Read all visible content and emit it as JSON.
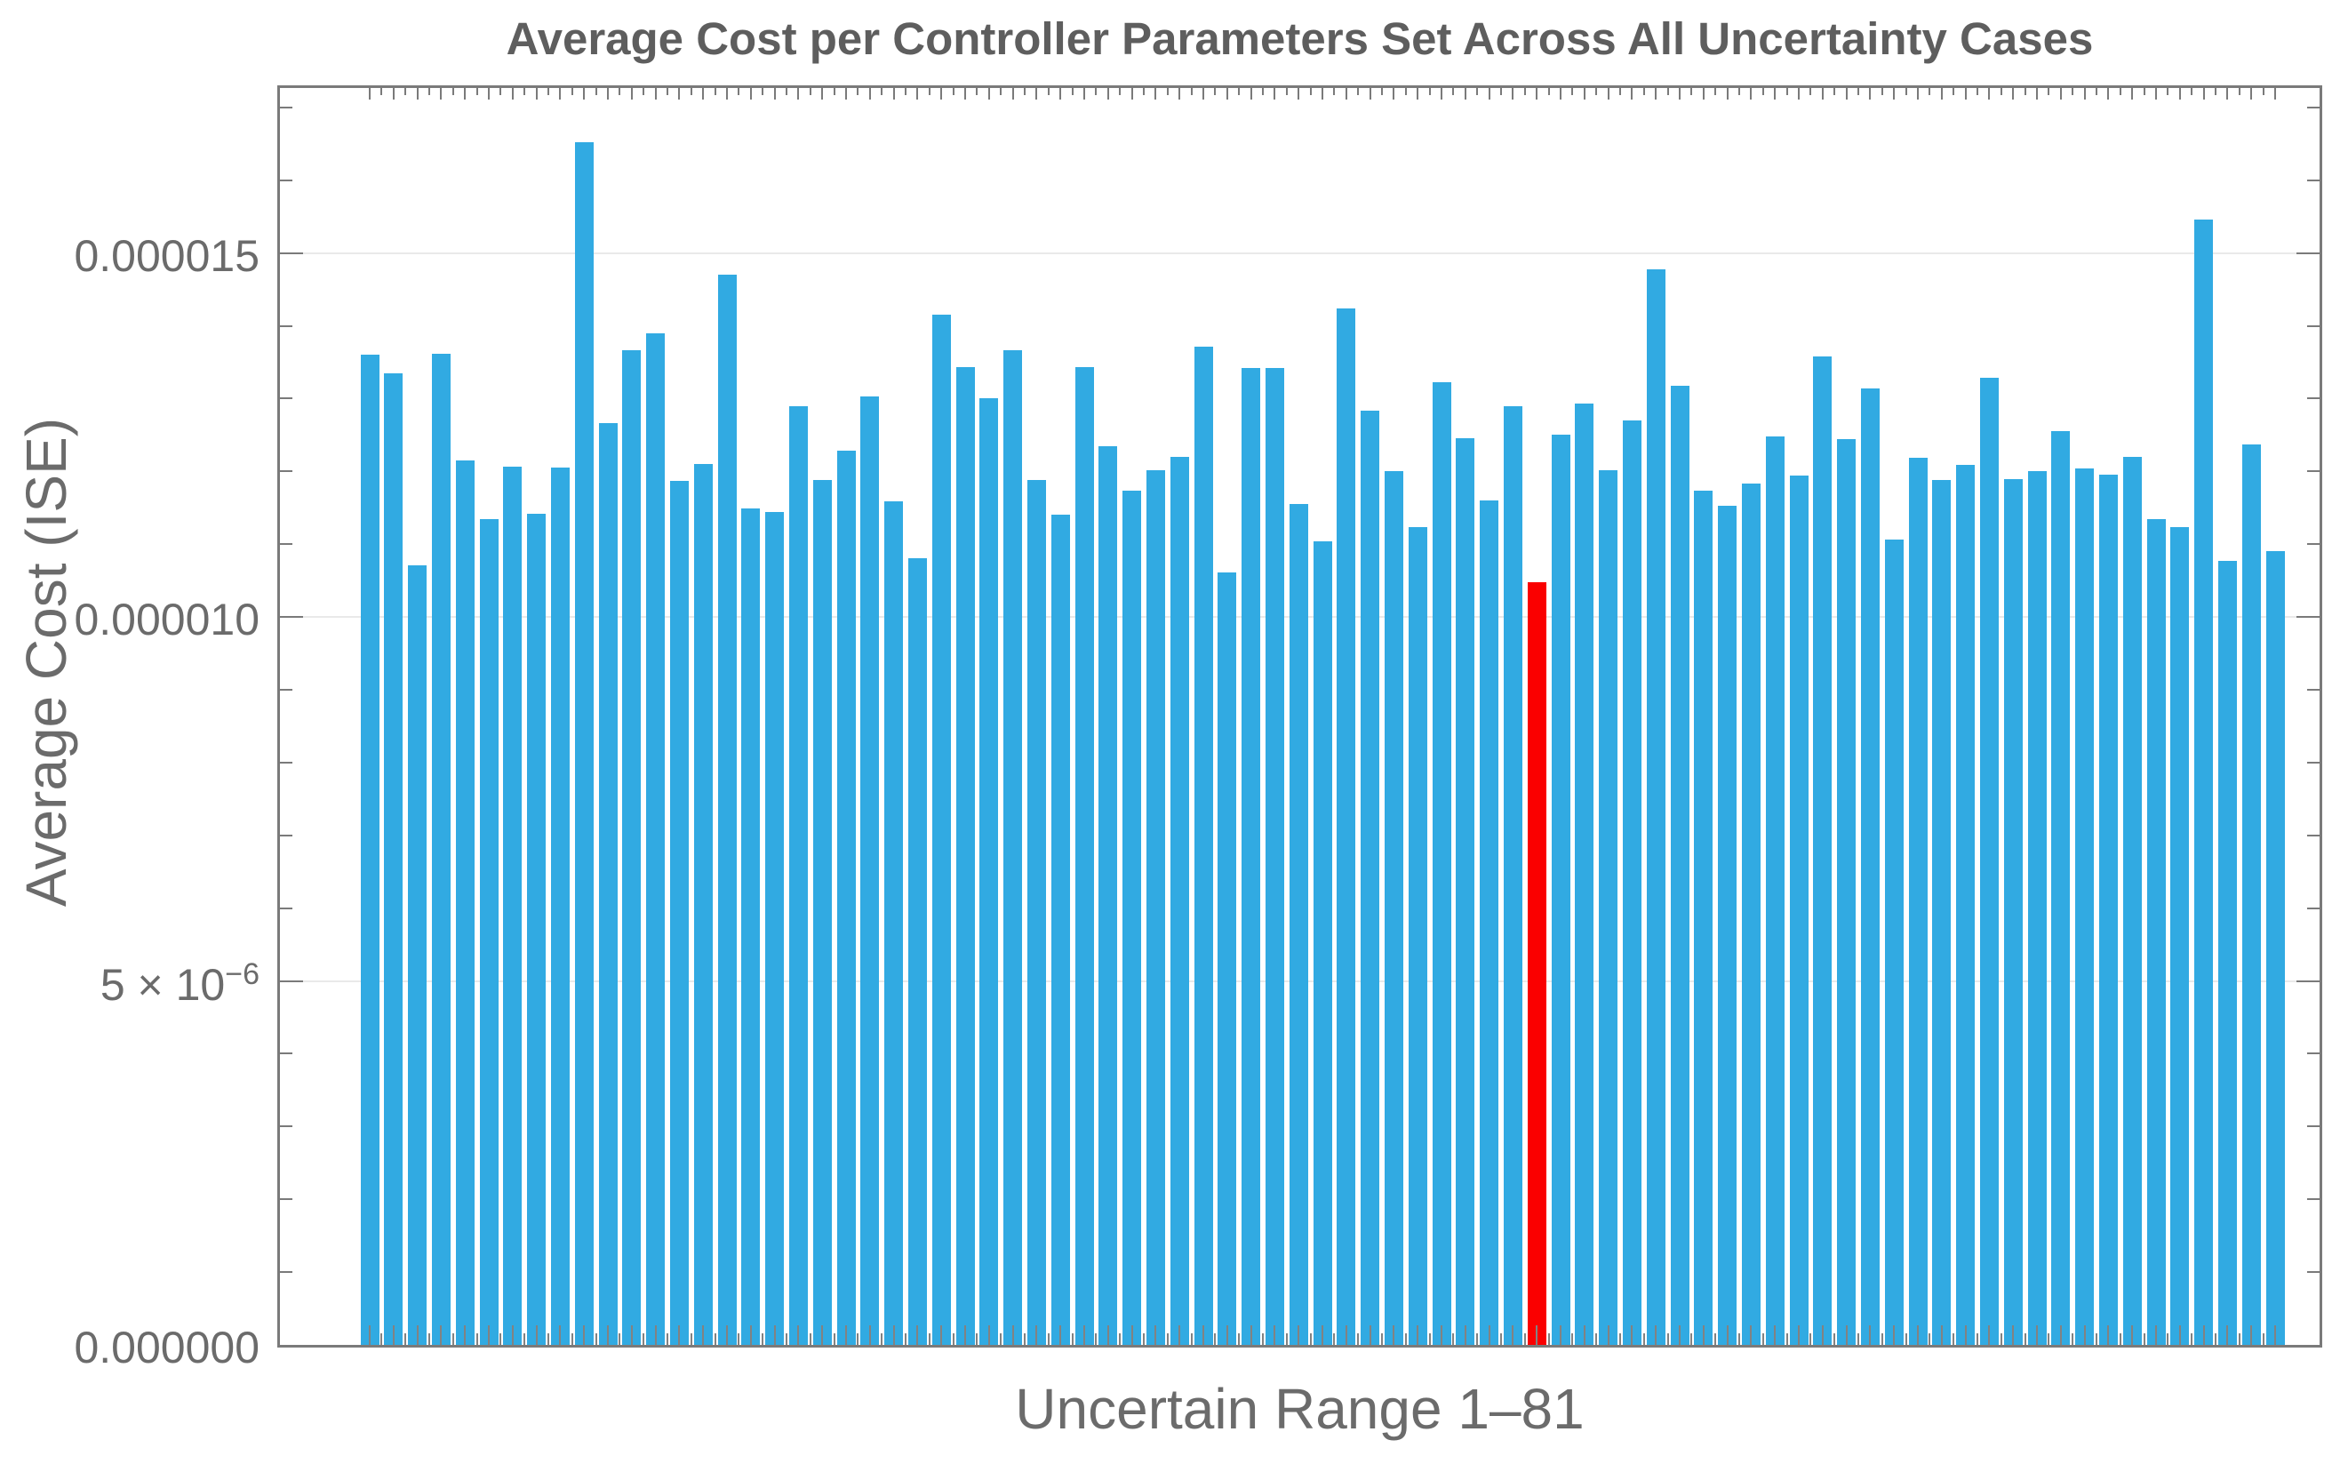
{
  "chart_data": {
    "type": "bar",
    "title": "Average Cost per Controller Parameters Set Across All Uncertainty Cases",
    "xlabel": "Uncertain Range 1–81",
    "ylabel": "Average Cost (ISE)",
    "unit_scale": "1e-6",
    "n_bars": 81,
    "categories_range": [
      1,
      81
    ],
    "values_e6": [
      13.6,
      13.35,
      10.71,
      13.61,
      12.15,
      11.34,
      12.06,
      11.42,
      12.05,
      16.52,
      12.66,
      13.66,
      13.9,
      11.87,
      12.1,
      14.7,
      11.49,
      11.44,
      12.89,
      11.88,
      12.29,
      13.03,
      11.59,
      10.81,
      14.15,
      13.43,
      13.0,
      13.66,
      11.88,
      11.4,
      13.43,
      12.34,
      11.74,
      12.01,
      12.2,
      13.71,
      10.61,
      13.42,
      13.42,
      11.55,
      11.04,
      14.24,
      12.84,
      12.0,
      11.24,
      13.23,
      12.45,
      11.6,
      12.89,
      10.48,
      12.51,
      12.93,
      12.01,
      12.7,
      14.78,
      13.18,
      11.73,
      11.53,
      11.83,
      12.48,
      11.94,
      13.58,
      12.44,
      13.14,
      11.06,
      12.19,
      11.88,
      12.09,
      13.28,
      11.9,
      12.0,
      12.55,
      12.04,
      11.95,
      12.2,
      11.35,
      11.23,
      15.46,
      10.77,
      12.37,
      10.9
    ],
    "highlight_index": 50,
    "bar_color": "#31AAE2",
    "highlight_color": "#FA0000",
    "ylim_e6": [
      0,
      17.34
    ],
    "gridlines_e6": [
      5,
      10,
      15
    ],
    "y_minor_tick_step_e6": 1,
    "x_minor_tick_step_units": 0.5,
    "grid_on": true,
    "legend": null,
    "y_ticks": [
      {
        "value_e6": 0,
        "label": "0.000000"
      },
      {
        "value_e6": 5,
        "mantissa": "5 × 10",
        "exponent": "−6"
      },
      {
        "value_e6": 10,
        "label": "0.000010"
      },
      {
        "value_e6": 15,
        "label": "0.000015"
      }
    ]
  },
  "colors": {
    "title_text": "#5e5e5e",
    "axis_text": "#6b6b6b",
    "frame": "#7a7a7a",
    "gridline": "#e9e9e9",
    "tick": "#7a7a7a"
  }
}
